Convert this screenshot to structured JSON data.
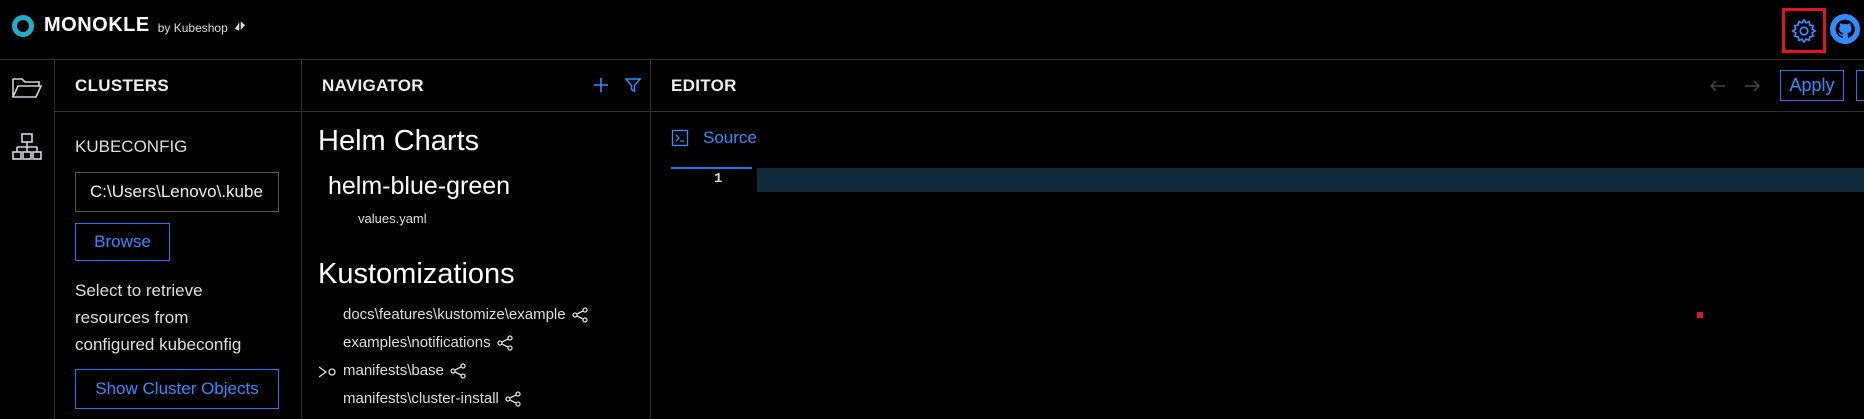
{
  "app": {
    "brand": "MONOKLE",
    "by": "by Kubeshop"
  },
  "clusters": {
    "title": "CLUSTERS",
    "kubeconfig_label": "KUBECONFIG",
    "kubeconfig_value": "C:\\Users\\Lenovo\\.kube",
    "browse_label": "Browse",
    "hint": "Select to retrieve resources from configured kubeconfig",
    "show_label": "Show Cluster Objects"
  },
  "navigator": {
    "title": "NAVIGATOR",
    "helm_heading": "Helm Charts",
    "chart_name": "helm-blue-green",
    "chart_file": "values.yaml",
    "kustomize_heading": "Kustomizations",
    "kustomizations": [
      "docs\\features\\kustomize\\example",
      "examples\\notifications",
      "manifests\\base",
      "manifests\\cluster-install"
    ]
  },
  "editor": {
    "title": "EDITOR",
    "apply_label": "Apply",
    "tab_source": "Source",
    "line_number": "1"
  },
  "colors": {
    "accent": "#1a78ff",
    "highlight": "#e0141e",
    "logo": "#1bb0ce"
  }
}
